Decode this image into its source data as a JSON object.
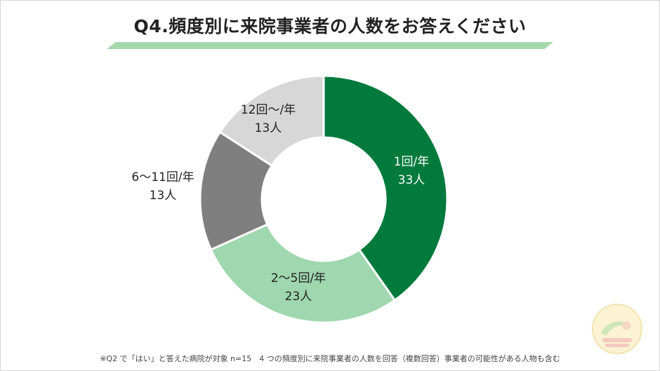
{
  "chart_data": {
    "type": "pie",
    "title": "Q4.頻度別に来院事業者の人数をお答えください",
    "slices": [
      {
        "label": "1回/年",
        "value": 33,
        "value_label": "33人",
        "color": "#027a3c"
      },
      {
        "label": "2〜5回/年",
        "value": 23,
        "value_label": "23人",
        "color": "#9fd7ae"
      },
      {
        "label": "6〜11回/年",
        "value": 13,
        "value_label": "13人",
        "color": "#7f7f7f"
      },
      {
        "label": "12回〜/年",
        "value": 13,
        "value_label": "13人",
        "color": "#d7d7d7"
      }
    ],
    "donut": true,
    "footnote": "※Q2 で「はい」と答えた病院が対象 n=15　4 つの頻度別に来院事業者の人数を回答（複数回答）事業者の可能性がある人物も含む"
  }
}
